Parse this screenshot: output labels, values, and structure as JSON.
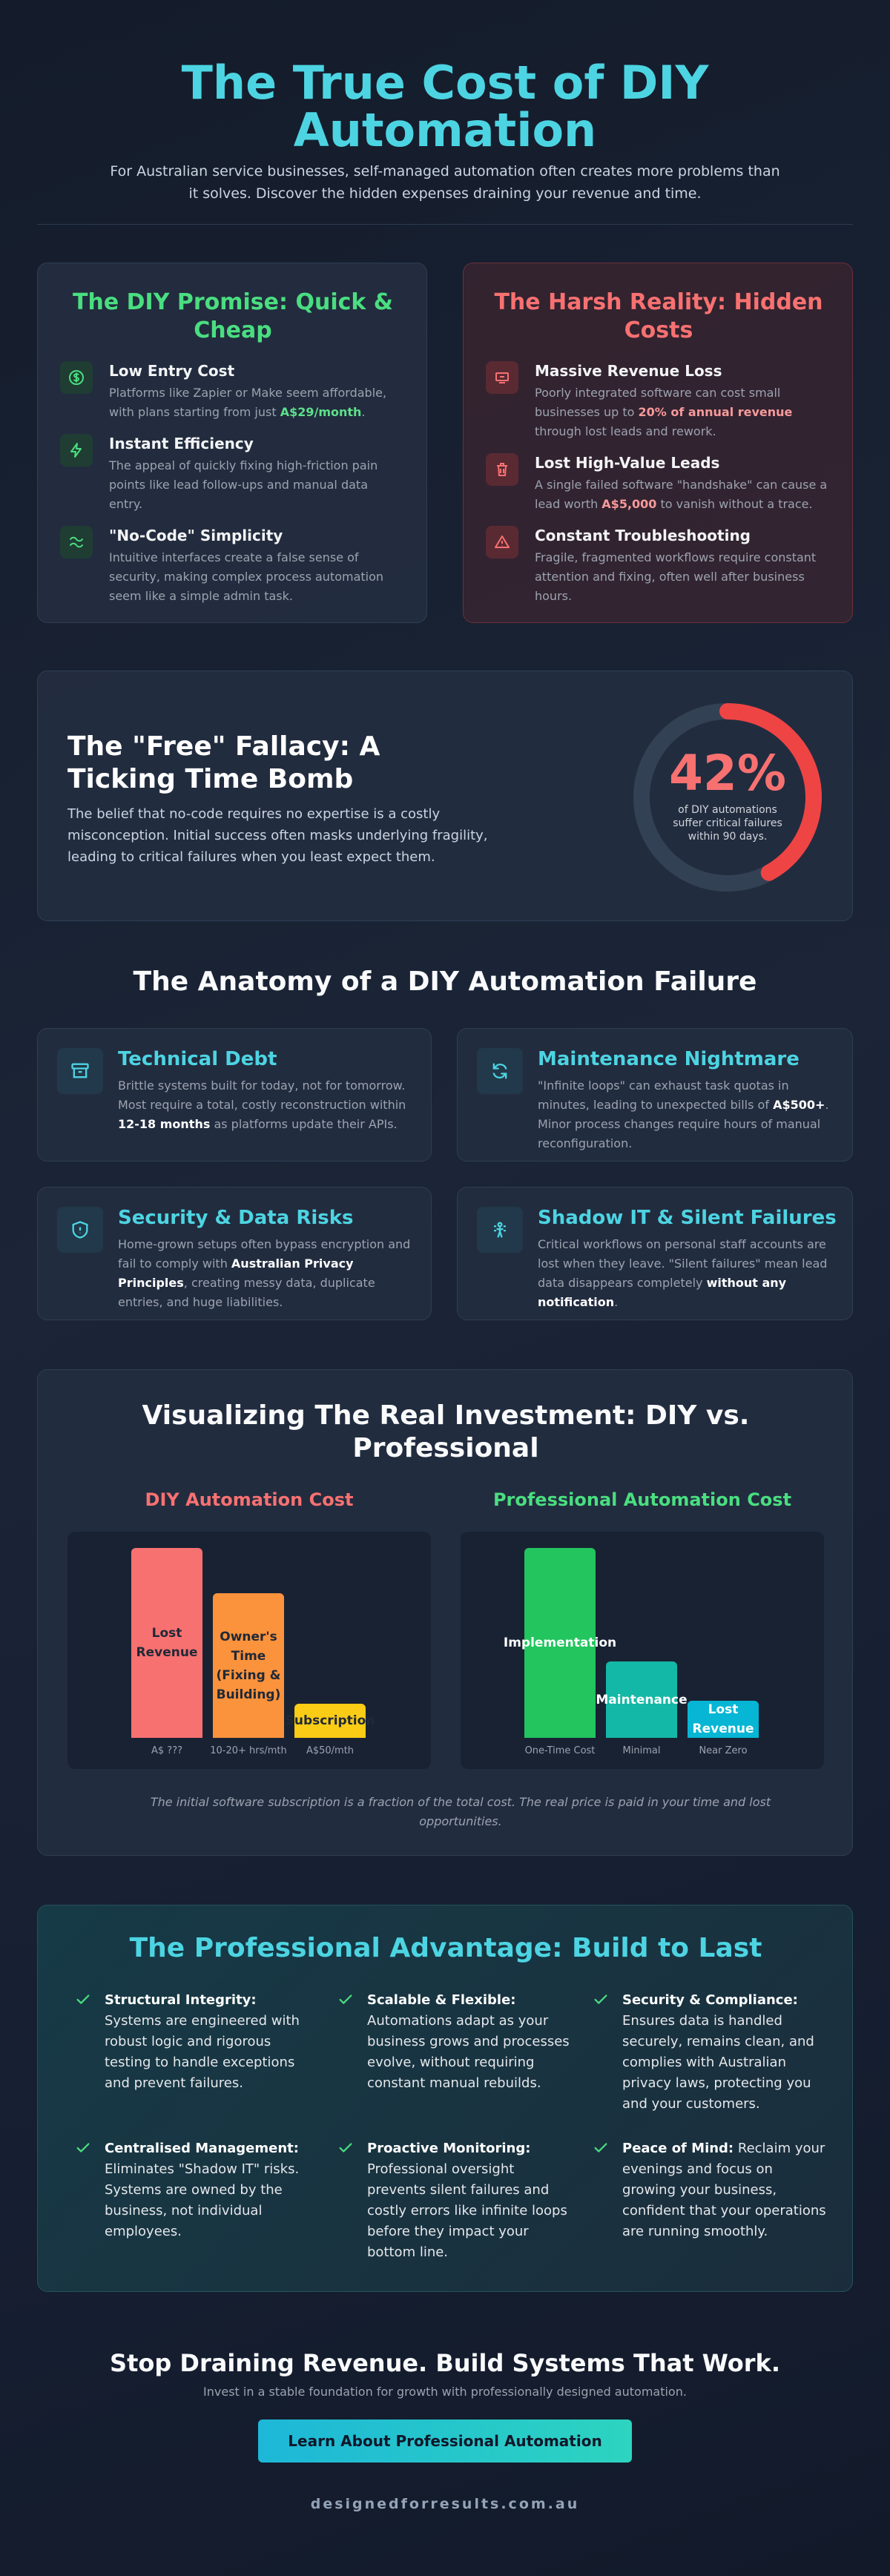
{
  "header": {
    "title": "The True Cost of DIY Automation",
    "subtitle": "For Australian service businesses, self-managed automation often creates more problems than it solves. Discover the hidden expenses draining your revenue and time."
  },
  "promise": {
    "title": "The DIY Promise: Quick & Cheap",
    "accent": "#4ade80",
    "items": [
      {
        "icon": "dollar-circle-icon",
        "head": "Low Entry Cost",
        "text_before": "Platforms like Zapier or Make seem affordable, with plans starting from just ",
        "highlight": "A$29/month",
        "text_after": "."
      },
      {
        "icon": "lightning-icon",
        "head": "Instant Efficiency",
        "text": "The appeal of quickly fixing high-friction pain points like lead follow-ups and manual data entry."
      },
      {
        "icon": "puzzle-icon",
        "head": "\"No-Code\" Simplicity",
        "text": "Intuitive interfaces create a false sense of security, making complex process automation seem like a simple admin task."
      }
    ]
  },
  "reality": {
    "title": "The Harsh Reality: Hidden Costs",
    "accent": "#f87171",
    "items": [
      {
        "icon": "money-loss-icon",
        "head": "Massive Revenue Loss",
        "text_before": "Poorly integrated software can cost small businesses up to ",
        "highlight": "20% of annual revenue",
        "text_after": " through lost leads and rework."
      },
      {
        "icon": "trash-icon",
        "head": "Lost High-Value Leads",
        "text_before": "A single failed software \"handshake\" can cause a lead worth ",
        "highlight": "A$5,000",
        "text_after": " to vanish without a trace."
      },
      {
        "icon": "warning-icon",
        "head": "Constant Troubleshooting",
        "text": "Fragile, fragmented workflows require constant attention and fixing, often well after business hours."
      }
    ]
  },
  "fallacy": {
    "title": "The \"Free\" Fallacy: A Ticking Time Bomb",
    "text": "The belief that no-code requires no expertise is a costly misconception. Initial success often masks underlying fragility, leading to critical failures when you least expect them.",
    "stat": "42%",
    "stat_fraction": 0.42,
    "stat_caption": "of DIY automations suffer critical failures within 90 days."
  },
  "anatomy": {
    "title": "The Anatomy of a DIY Automation Failure",
    "items": [
      {
        "icon": "archive-box-icon",
        "head": "Technical Debt",
        "parts": [
          {
            "t": "Brittle systems built for today, not for tomorrow. Most require a total, costly reconstruction within "
          },
          {
            "t": "12-18 months",
            "b": true
          },
          {
            "t": " as platforms update their APIs."
          }
        ]
      },
      {
        "icon": "refresh-loop-icon",
        "head": "Maintenance Nightmare",
        "parts": [
          {
            "t": "\"Infinite loops\" can exhaust task quotas in minutes, leading to unexpected bills of "
          },
          {
            "t": "A$500+",
            "b": true
          },
          {
            "t": ". Minor process changes require hours of manual reconfiguration."
          }
        ]
      },
      {
        "icon": "shield-icon",
        "head": "Security & Data Risks",
        "parts": [
          {
            "t": "Home-grown setups often bypass encryption and fail to comply with "
          },
          {
            "t": "Australian Privacy Principles",
            "b": true
          },
          {
            "t": ", creating messy data, duplicate entries, and huge liabilities."
          }
        ]
      },
      {
        "icon": "ghost-user-icon",
        "head": "Shadow IT & Silent Failures",
        "parts": [
          {
            "t": "Critical workflows on personal staff accounts are lost when they leave. \"Silent failures\" mean lead data disappears completely "
          },
          {
            "t": "without any notification",
            "b": true
          },
          {
            "t": "."
          }
        ]
      }
    ]
  },
  "investment": {
    "title": "Visualizing The Real Investment: DIY vs. Professional",
    "note": "The initial software subscription is a fraction of the total cost. The real price is paid in your time and lost opportunities.",
    "chart_data": [
      {
        "type": "bar",
        "title": "DIY Automation Cost",
        "title_color": "#f87171",
        "categories": [
          "A$ ???",
          "10-20+ hrs/mth",
          "A$50/mth"
        ],
        "bar_labels": [
          "Lost Revenue",
          "Owner's Time (Fixing & Building)",
          "Subscription"
        ],
        "values": [
          100,
          76,
          18
        ],
        "colors": [
          "#f87171",
          "#fb923c",
          "#facc15"
        ],
        "label_colors": [
          "#1f2937",
          "#1f2937",
          "#1f2937"
        ]
      },
      {
        "type": "bar",
        "title": "Professional Automation Cost",
        "title_color": "#4ade80",
        "categories": [
          "One-Time Cost",
          "Minimal",
          "Near Zero"
        ],
        "bar_labels": [
          "Implementation",
          "Maintenance",
          "Lost Revenue"
        ],
        "values": [
          62,
          25,
          12
        ],
        "colors": [
          "#22c55e",
          "#14b8a6",
          "#06b6d4"
        ],
        "label_colors": [
          "#ffffff",
          "#ffffff",
          "#ffffff"
        ]
      }
    ]
  },
  "advantage": {
    "title": "The Professional Advantage: Build to Last",
    "items": [
      {
        "head": "Structural Integrity:",
        "text": "Systems are engineered with robust logic and rigorous testing to handle exceptions and prevent failures."
      },
      {
        "head": "Scalable & Flexible:",
        "text": "Automations adapt as your business grows and processes evolve, without requiring constant manual rebuilds."
      },
      {
        "head": "Security & Compliance:",
        "text": "Ensures data is handled securely, remains clean, and complies with Australian privacy laws, protecting you and your customers."
      },
      {
        "head": "Centralised Management:",
        "text": "Eliminates \"Shadow IT\" risks. Systems are owned by the business, not individual employees."
      },
      {
        "head": "Proactive Monitoring:",
        "text": "Professional oversight prevents silent failures and costly errors like infinite loops before they impact your bottom line."
      },
      {
        "head": "Peace of Mind:",
        "text": "Reclaim your evenings and focus on growing your business, confident that your operations are running smoothly."
      }
    ]
  },
  "cta": {
    "title": "Stop Draining Revenue. Build Systems That Work.",
    "subtitle": "Invest in a stable foundation for growth with professionally designed automation.",
    "button_label": "Learn About Professional Automation"
  },
  "footer": {
    "domain": "designedforresults.com.au"
  }
}
